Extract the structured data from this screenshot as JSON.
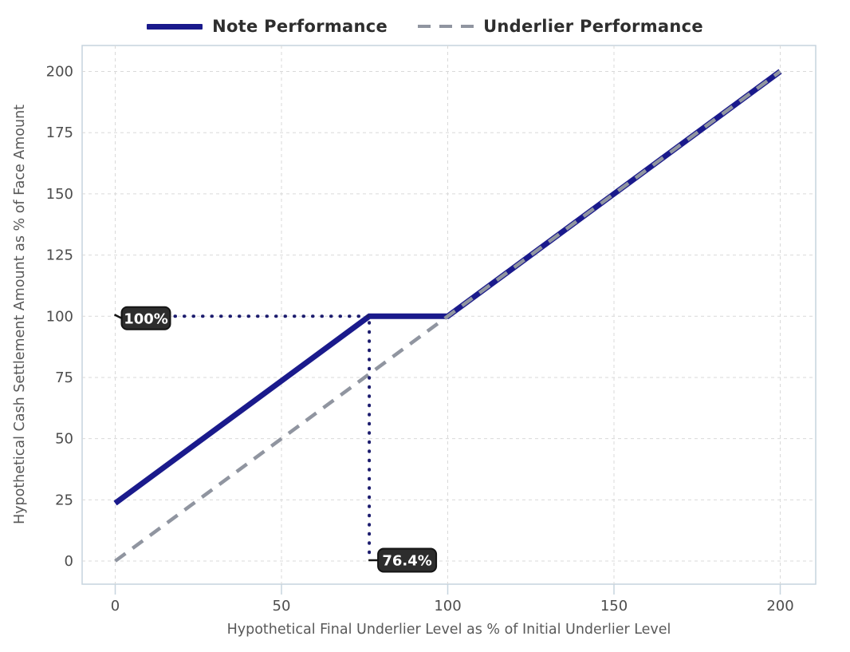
{
  "chart_data": {
    "type": "line",
    "title": "",
    "xlabel": "Hypothetical Final Underlier Level as % of Initial Underlier Level",
    "ylabel": "Hypothetical Cash Settlement Amount as % of Face Amount",
    "xlim": [
      0,
      200
    ],
    "ylim": [
      0,
      200
    ],
    "x_ticks": [
      0,
      50,
      100,
      150,
      200
    ],
    "y_ticks": [
      0,
      25,
      50,
      75,
      100,
      125,
      150,
      175,
      200
    ],
    "grid": true,
    "legend_position": "top-center",
    "series": [
      {
        "name": "Note Performance",
        "style": "solid",
        "color": "#1a1a8c",
        "width": 7,
        "points": [
          [
            0,
            23.6
          ],
          [
            76.4,
            100
          ],
          [
            100,
            100
          ],
          [
            200,
            200
          ]
        ]
      },
      {
        "name": "Underlier Performance",
        "style": "dashed",
        "color": "#9095a0",
        "width": 4.5,
        "points": [
          [
            0,
            0
          ],
          [
            200,
            200
          ]
        ]
      }
    ],
    "annotations": [
      {
        "label": "100%",
        "orientation": "horizontal",
        "value": 100,
        "dotted_from": [
          0,
          100
        ],
        "dotted_to": [
          76.4,
          100
        ]
      },
      {
        "label": "76.4%",
        "orientation": "vertical",
        "value": 76.4,
        "dotted_from": [
          76.4,
          100
        ],
        "dotted_to": [
          76.4,
          0
        ]
      }
    ]
  },
  "colors": {
    "background": "#ffffff",
    "plot_border": "#c6d4de",
    "gridline": "#d9d9d9",
    "tick_label": "#4d4d4d",
    "axis_title": "#595959",
    "legend_text": "#2e2e2e",
    "dotted_guide": "#1c1c6e",
    "annotation_box": "#2d2d2d",
    "annotation_border": "#141414",
    "annotation_text": "#ffffff"
  }
}
